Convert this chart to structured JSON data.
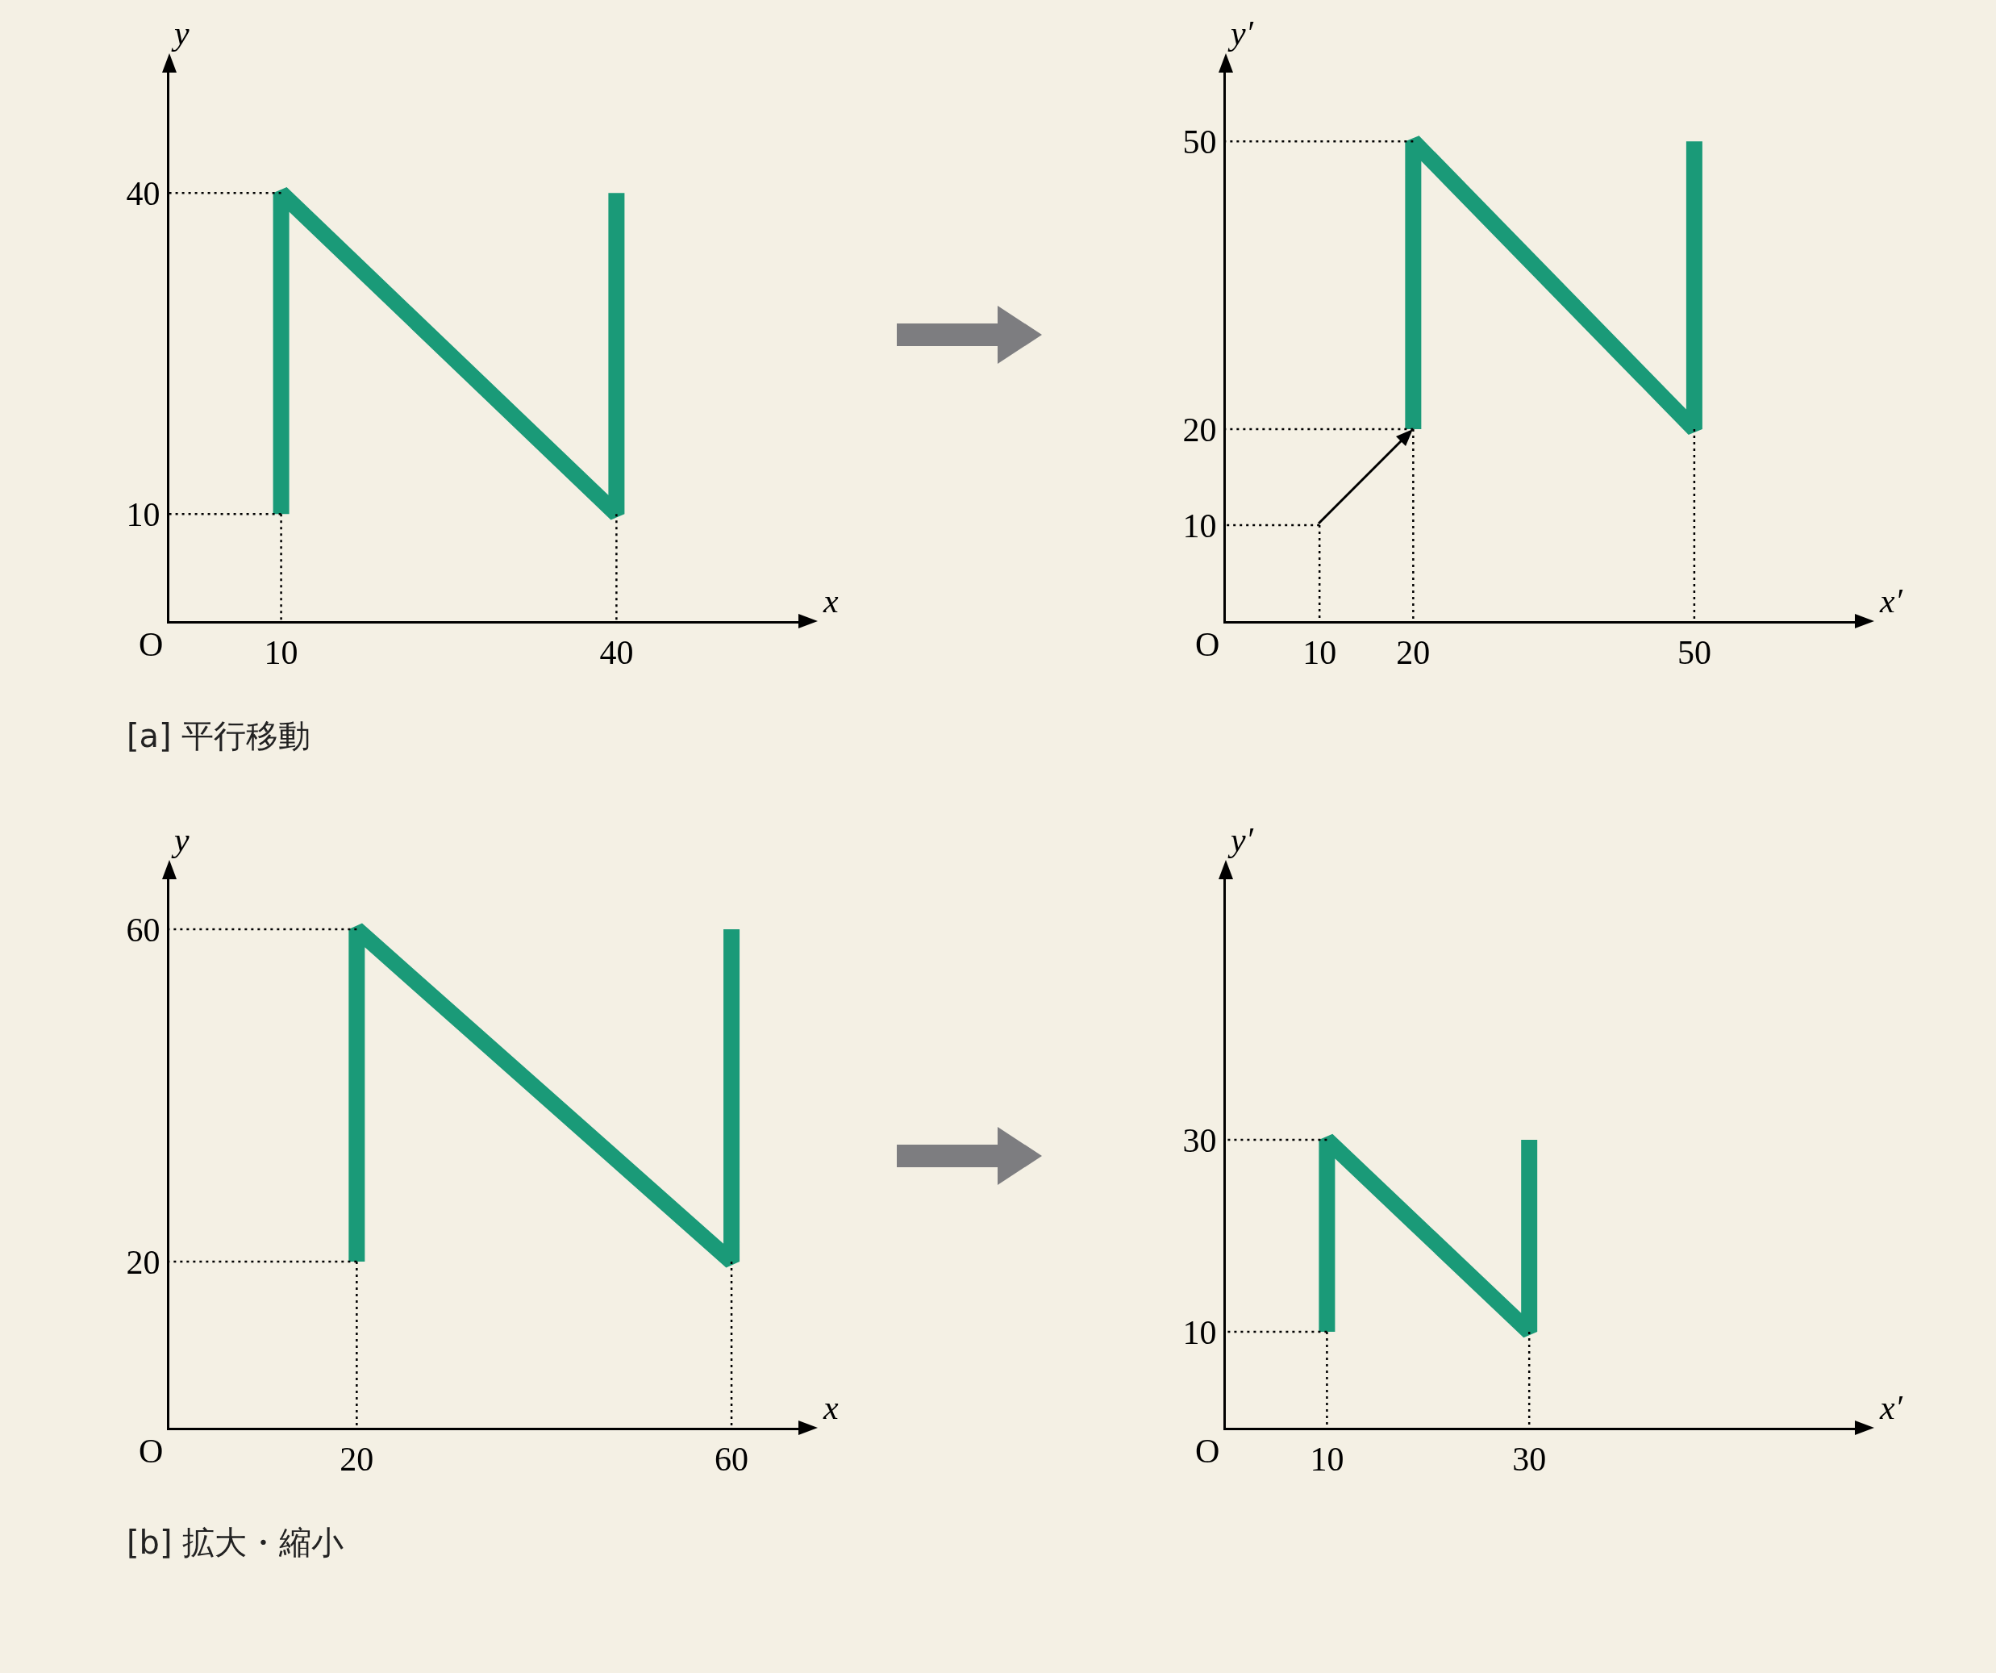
{
  "chart_data": [
    {
      "type": "line",
      "xlabel": "x",
      "ylabel": "y",
      "xlim": [
        0,
        57
      ],
      "ylim": [
        0,
        52
      ],
      "xticks": [
        10,
        40
      ],
      "yticks": [
        10,
        40
      ],
      "grid": false,
      "annotations": [
        "O",
        "[a] 平行移動"
      ],
      "series": [
        {
          "x": [
            10,
            0
          ],
          "values": [
            40,
            40
          ],
          "color": "#000000",
          "line_style": "dotted"
        },
        {
          "x": [
            10,
            0
          ],
          "values": [
            10,
            10
          ],
          "color": "#000000",
          "line_style": "dotted"
        },
        {
          "x": [
            10,
            10
          ],
          "values": [
            10,
            0
          ],
          "color": "#000000",
          "line_style": "dotted"
        },
        {
          "x": [
            40,
            40
          ],
          "values": [
            10,
            0
          ],
          "color": "#000000",
          "line_style": "dotted"
        },
        {
          "x": [
            10,
            10,
            40,
            40
          ],
          "values": [
            10,
            40,
            10,
            40
          ],
          "color": "#1a9a78",
          "line_style": "solid"
        }
      ]
    },
    {
      "type": "line",
      "xlabel": "x′",
      "ylabel": "y′",
      "xlim": [
        0,
        68
      ],
      "ylim": [
        0,
        58
      ],
      "xticks": [
        10,
        20,
        50
      ],
      "yticks": [
        10,
        20,
        50
      ],
      "grid": false,
      "annotations": [
        "O"
      ],
      "series": [
        {
          "x": [
            20,
            0
          ],
          "values": [
            50,
            50
          ],
          "color": "#000000",
          "line_style": "dotted"
        },
        {
          "x": [
            20,
            0
          ],
          "values": [
            20,
            20
          ],
          "color": "#000000",
          "line_style": "dotted"
        },
        {
          "x": [
            10,
            0
          ],
          "values": [
            10,
            10
          ],
          "color": "#000000",
          "line_style": "dotted"
        },
        {
          "x": [
            10,
            10
          ],
          "values": [
            10,
            0
          ],
          "color": "#000000",
          "line_style": "dotted"
        },
        {
          "x": [
            20,
            20
          ],
          "values": [
            20,
            0
          ],
          "color": "#000000",
          "line_style": "dotted"
        },
        {
          "x": [
            50,
            50
          ],
          "values": [
            20,
            0
          ],
          "color": "#000000",
          "line_style": "dotted"
        },
        {
          "x": [
            20,
            20,
            50,
            50
          ],
          "values": [
            20,
            50,
            20,
            50
          ],
          "color": "#1a9a78",
          "line_style": "solid"
        }
      ]
    },
    {
      "type": "line",
      "xlabel": "x",
      "ylabel": "y",
      "xlim": [
        0,
        68
      ],
      "ylim": [
        0,
        67
      ],
      "xticks": [
        20,
        60
      ],
      "yticks": [
        20,
        60
      ],
      "grid": false,
      "annotations": [
        "O",
        "[b] 拡大・縮小"
      ],
      "series": [
        {
          "x": [
            20,
            0
          ],
          "values": [
            60,
            60
          ],
          "color": "#000000",
          "line_style": "dotted"
        },
        {
          "x": [
            20,
            0
          ],
          "values": [
            20,
            20
          ],
          "color": "#000000",
          "line_style": "dotted"
        },
        {
          "x": [
            20,
            20
          ],
          "values": [
            20,
            0
          ],
          "color": "#000000",
          "line_style": "dotted"
        },
        {
          "x": [
            60,
            60
          ],
          "values": [
            20,
            0
          ],
          "color": "#000000",
          "line_style": "dotted"
        },
        {
          "x": [
            20,
            20,
            60,
            60
          ],
          "values": [
            20,
            60,
            20,
            60
          ],
          "color": "#1a9a78",
          "line_style": "solid"
        }
      ]
    },
    {
      "type": "line",
      "xlabel": "x′",
      "ylabel": "y′",
      "xlim": [
        0,
        63
      ],
      "ylim": [
        0,
        58
      ],
      "xticks": [
        10,
        30
      ],
      "yticks": [
        10,
        30
      ],
      "grid": false,
      "annotations": [
        "O"
      ],
      "series": [
        {
          "x": [
            10,
            0
          ],
          "values": [
            30,
            30
          ],
          "color": "#000000",
          "line_style": "dotted"
        },
        {
          "x": [
            10,
            0
          ],
          "values": [
            10,
            10
          ],
          "color": "#000000",
          "line_style": "dotted"
        },
        {
          "x": [
            10,
            10
          ],
          "values": [
            10,
            0
          ],
          "color": "#000000",
          "line_style": "dotted"
        },
        {
          "x": [
            30,
            30
          ],
          "values": [
            10,
            0
          ],
          "color": "#000000",
          "line_style": "dotted"
        },
        {
          "x": [
            10,
            10,
            30,
            30
          ],
          "values": [
            10,
            30,
            10,
            30
          ],
          "color": "#1a9a78",
          "line_style": "solid"
        }
      ]
    }
  ]
}
